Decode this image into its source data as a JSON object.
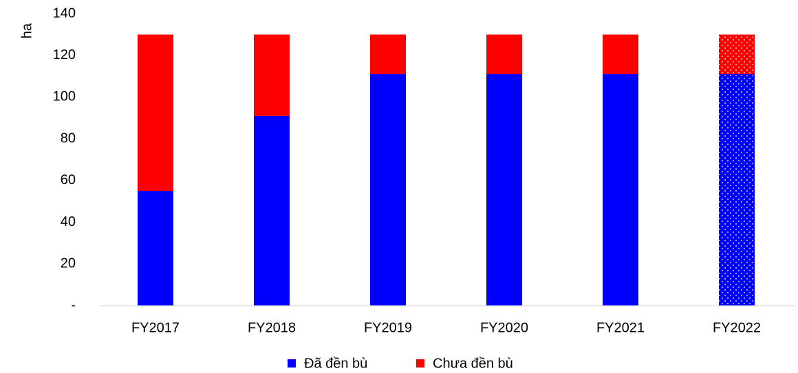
{
  "chart_data": {
    "type": "stacked_bar",
    "y_label": "ha",
    "categories": [
      "FY2017",
      "FY2018",
      "FY2019",
      "FY2020",
      "FY2021",
      "FY2022"
    ],
    "series": [
      {
        "name": "Đã đền bù",
        "color": "#0000ff",
        "values": [
          55,
          91,
          111,
          111,
          111,
          111
        ]
      },
      {
        "name": "Chưa đền bù",
        "color": "#ff0000",
        "values": [
          75,
          39,
          19,
          19,
          19,
          19
        ]
      }
    ],
    "dotted": [
      false,
      false,
      false,
      false,
      false,
      true
    ],
    "ylim": [
      0,
      140
    ],
    "yticks": [
      {
        "value": 0,
        "label": "-"
      },
      20,
      40,
      60,
      80,
      100,
      120,
      140
    ],
    "grid": false,
    "legend": "bottom"
  }
}
